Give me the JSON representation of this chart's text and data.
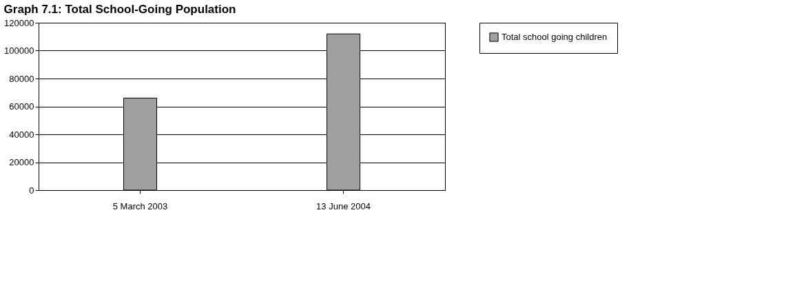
{
  "chart_data": {
    "type": "bar",
    "title": "Graph 7.1: Total School-Going Population",
    "categories": [
      "5 March 2003",
      "13 June 2004"
    ],
    "series": [
      {
        "name": "Total school going children",
        "color": "#a0a0a0",
        "values": [
          66000,
          112000
        ]
      }
    ],
    "ylim": [
      0,
      120000
    ],
    "yticks": [
      0,
      20000,
      40000,
      60000,
      80000,
      100000,
      120000
    ],
    "grid": "y",
    "legend": "right"
  }
}
